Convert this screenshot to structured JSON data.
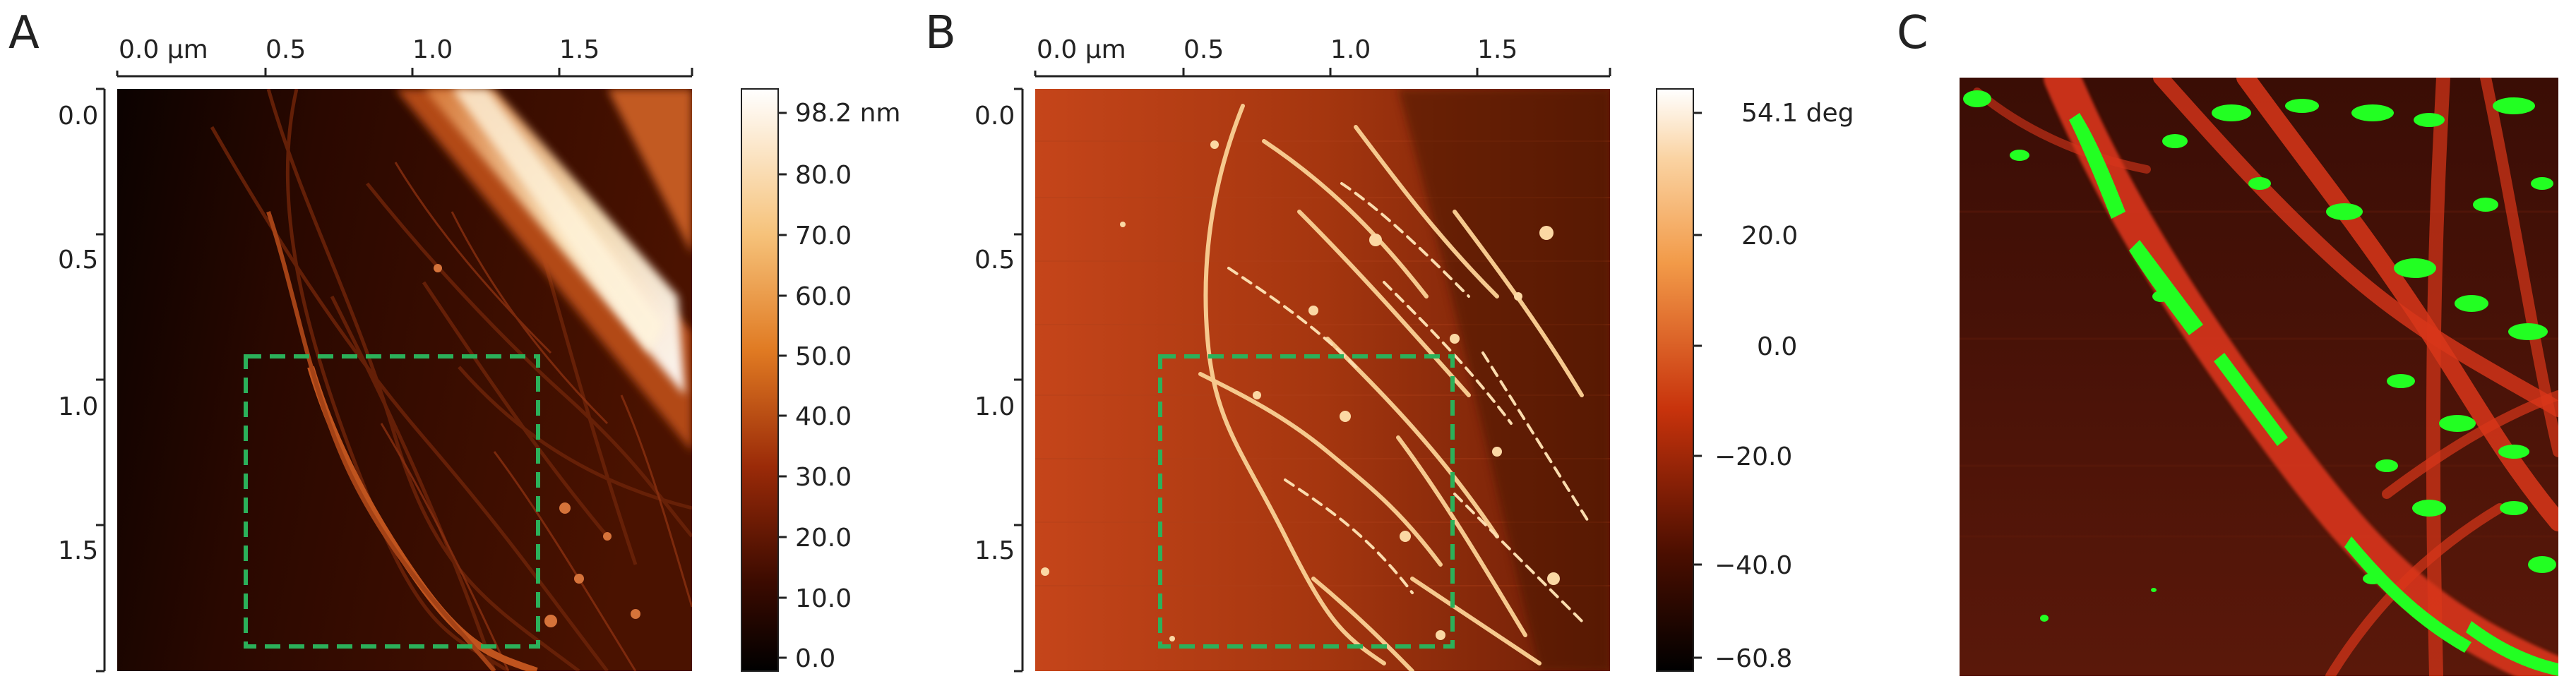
{
  "panels": [
    {
      "letter": "A",
      "x_ticks": [
        "0.0 µm",
        "0.5",
        "1.0",
        "1.5"
      ],
      "y_ticks": [
        "0.0",
        "0.5",
        "1.0",
        "1.5"
      ],
      "colorbar_labels": [
        "98.2 nm",
        "80.0",
        "70.0",
        "60.0",
        "50.0",
        "40.0",
        "30.0",
        "20.0",
        "10.0",
        "0.0"
      ]
    },
    {
      "letter": "B",
      "x_ticks": [
        "0.0 µm",
        "0.5",
        "1.0",
        "1.5"
      ],
      "y_ticks": [
        "0.0",
        "0.5",
        "1.0",
        "1.5"
      ],
      "colorbar_labels": [
        "54.1 deg",
        "20.0",
        "0.0",
        "−20.0",
        "−40.0",
        "−60.8"
      ]
    },
    {
      "letter": "C"
    }
  ],
  "colors": {
    "roi_box": "#2bb15a",
    "overlay_green": "#22ff22",
    "overlay_red": "#e23a1c"
  }
}
